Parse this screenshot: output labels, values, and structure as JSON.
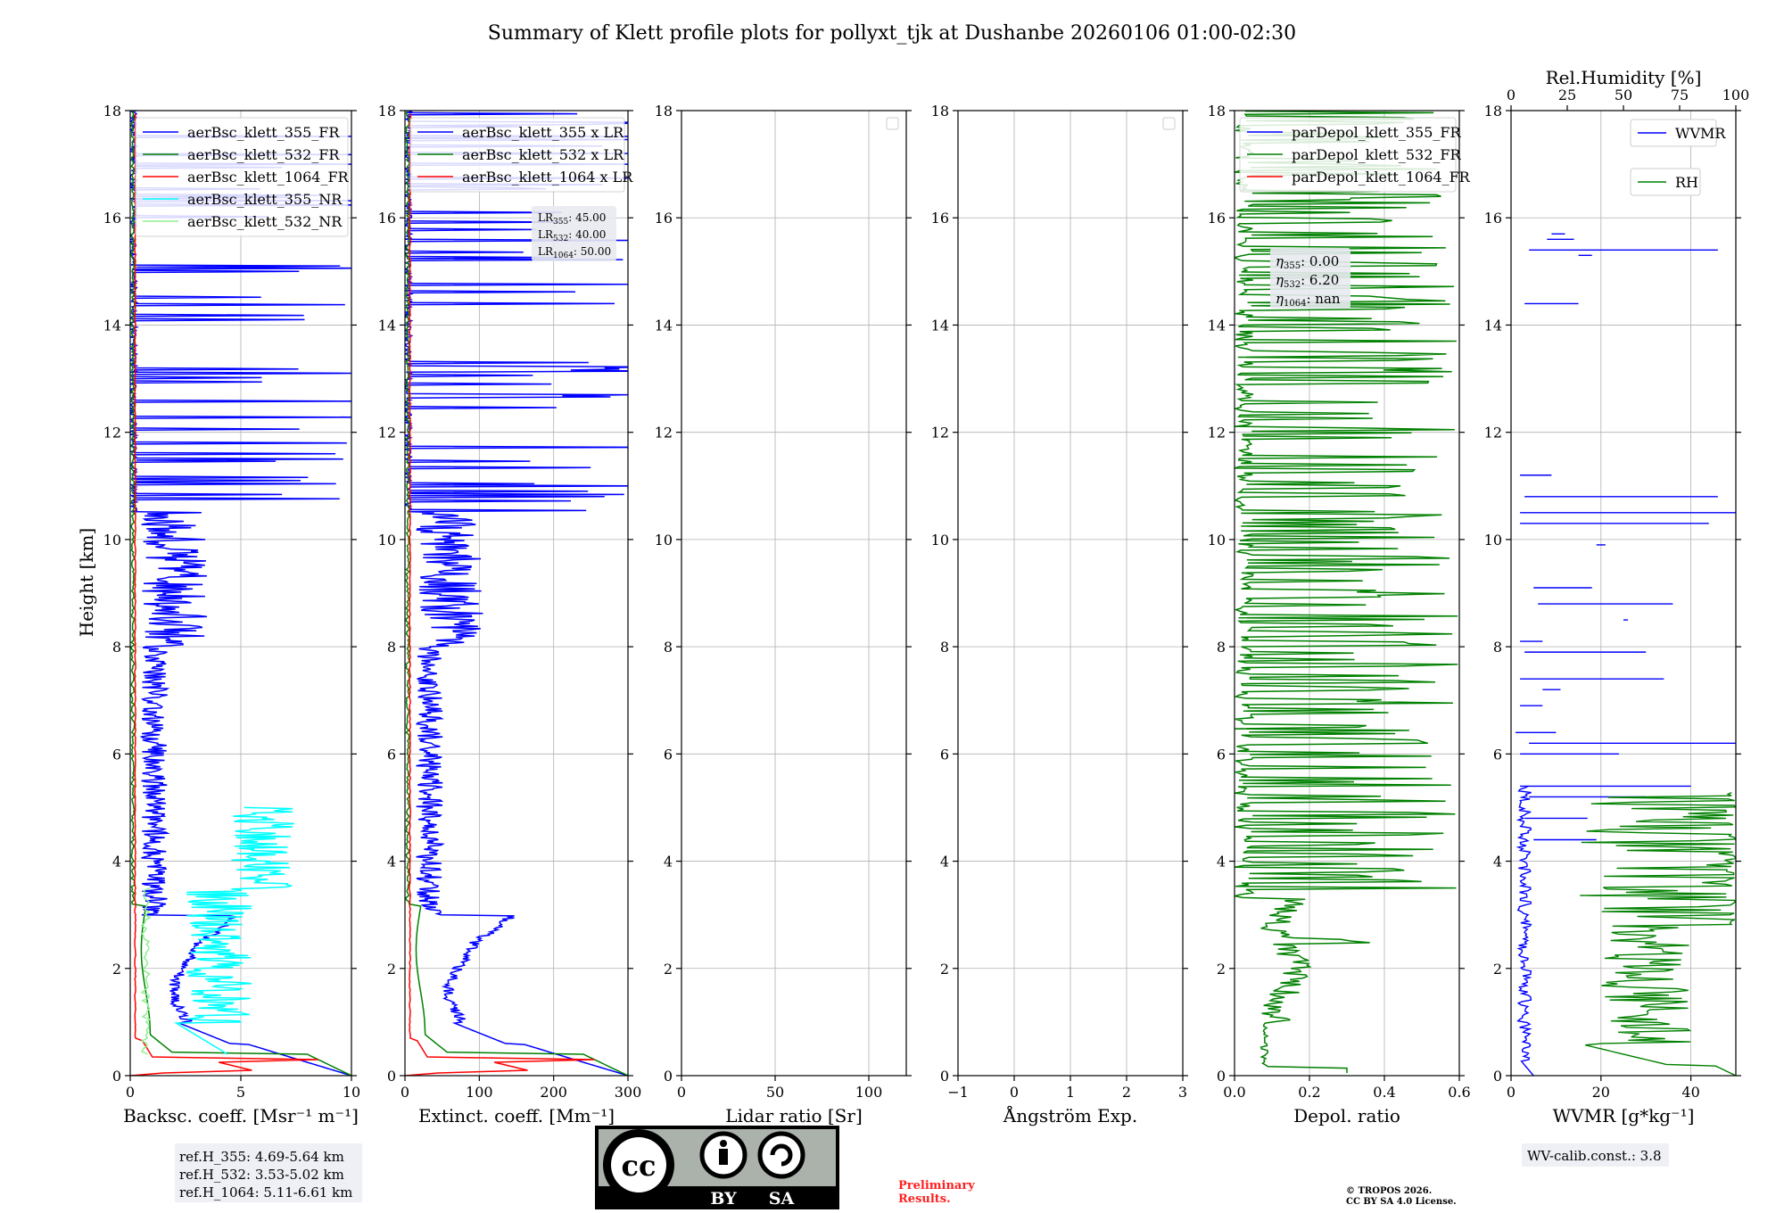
{
  "title": "Summary of Klett profile plots for pollyxt_tjk at Dushanbe 20260106 01:00-02:30",
  "y_axis_label": "Height [km]",
  "y_ticks": [
    "0",
    "2",
    "4",
    "6",
    "8",
    "10",
    "12",
    "14",
    "16",
    "18"
  ],
  "colors": {
    "blue": "#0000ff",
    "green": "#008000",
    "red": "#ff0000",
    "cyan": "#00ffff",
    "lightgreen": "#90ee90",
    "grid": "#b0b0b0"
  },
  "chart_data": [
    {
      "id": "bsc",
      "type": "line",
      "xlabel": "Backsc. coeff. [Msr⁻¹ m⁻¹]",
      "xlim": [
        0,
        10
      ],
      "ylim": [
        0,
        18
      ],
      "xticks": [
        {
          "v": 0,
          "label": "0"
        },
        {
          "v": 5,
          "label": "5"
        },
        {
          "v": 10,
          "label": "10"
        }
      ],
      "legend": [
        "aerBsc_klett_355_FR",
        "aerBsc_klett_532_FR",
        "aerBsc_klett_1064_FR",
        "aerBsc_klett_355_NR",
        "aerBsc_klett_532_NR"
      ],
      "legend_colors": [
        "blue",
        "green",
        "red",
        "cyan",
        "lightgreen"
      ]
    },
    {
      "id": "ext",
      "type": "line",
      "xlabel": "Extinct. coeff. [Mm⁻¹]",
      "xlim": [
        0,
        300
      ],
      "ylim": [
        0,
        18
      ],
      "xticks": [
        {
          "v": 0,
          "label": "0"
        },
        {
          "v": 100,
          "label": "100"
        },
        {
          "v": 200,
          "label": "200"
        },
        {
          "v": 300,
          "label": "300"
        }
      ],
      "legend": [
        "aerBsc_klett_355 x LR",
        "aerBsc_klett_532 x LR",
        "aerBsc_klett_1064 x LR"
      ],
      "legend_colors": [
        "blue",
        "green",
        "red"
      ]
    },
    {
      "id": "lr",
      "type": "line",
      "xlabel": "Lidar ratio [Sr]",
      "xlim": [
        0,
        120
      ],
      "ylim": [
        0,
        18
      ],
      "xticks": [
        {
          "v": 0,
          "label": "0"
        },
        {
          "v": 50,
          "label": "50"
        },
        {
          "v": 100,
          "label": "100"
        }
      ],
      "legend": [],
      "legend_colors": []
    },
    {
      "id": "ang",
      "type": "line",
      "xlabel": "Ångström Exp.",
      "xlim": [
        -1,
        3
      ],
      "ylim": [
        0,
        18
      ],
      "xticks": [
        {
          "v": -1,
          "label": "−1"
        },
        {
          "v": 0,
          "label": "0"
        },
        {
          "v": 1,
          "label": "1"
        },
        {
          "v": 2,
          "label": "2"
        },
        {
          "v": 3,
          "label": "3"
        }
      ],
      "legend": [],
      "legend_colors": []
    },
    {
      "id": "dep",
      "type": "line",
      "xlabel": "Depol. ratio",
      "xlim": [
        0,
        0.6
      ],
      "ylim": [
        0,
        18
      ],
      "xticks": [
        {
          "v": 0,
          "label": "0.0"
        },
        {
          "v": 0.2,
          "label": "0.2"
        },
        {
          "v": 0.4,
          "label": "0.4"
        },
        {
          "v": 0.6,
          "label": "0.6"
        }
      ],
      "legend": [
        "parDepol_klett_355_FR",
        "parDepol_klett_532_FR",
        "parDepol_klett_1064_FR"
      ],
      "legend_colors": [
        "blue",
        "green",
        "red"
      ]
    },
    {
      "id": "wv",
      "type": "line",
      "xlabel": "WVMR [g*kg⁻¹]",
      "xlim": [
        0,
        50
      ],
      "ylim": [
        0,
        18
      ],
      "xticks": [
        {
          "v": 0,
          "label": "0"
        },
        {
          "v": 20,
          "label": "20"
        },
        {
          "v": 40,
          "label": "40"
        }
      ],
      "top_xlabel": "Rel.Humidity [%]",
      "top_xticks": [
        {
          "v": 0,
          "label": "0"
        },
        {
          "v": 25,
          "label": "25"
        },
        {
          "v": 50,
          "label": "50"
        },
        {
          "v": 75,
          "label": "75"
        },
        {
          "v": 100,
          "label": "100"
        }
      ],
      "legend": [
        "WVMR",
        "RH"
      ],
      "legend_colors": [
        "blue",
        "green"
      ]
    }
  ],
  "lidar_ratio_box": {
    "lr355": "45.00",
    "lr532": "40.00",
    "lr1064": "50.00"
  },
  "eta_box": {
    "eta355": "0.00",
    "eta532": "6.20",
    "eta1064": "nan"
  },
  "ref_heights": {
    "h355": "ref.H_355: 4.69-5.64 km",
    "h532": "ref.H_532: 3.53-5.02 km",
    "h1064": "ref.H_1064: 5.11-6.61 km"
  },
  "wv_calib": "WV-calib.const.: 3.8",
  "preliminary": {
    "line1": "Preliminary",
    "line2": "Results."
  },
  "copyright": {
    "line1": "© TROPOS 2026.",
    "line2": "CC BY SA 4.0 License."
  },
  "cc_badge": {
    "cc": "cc",
    "by": "BY",
    "sa": "SA"
  }
}
